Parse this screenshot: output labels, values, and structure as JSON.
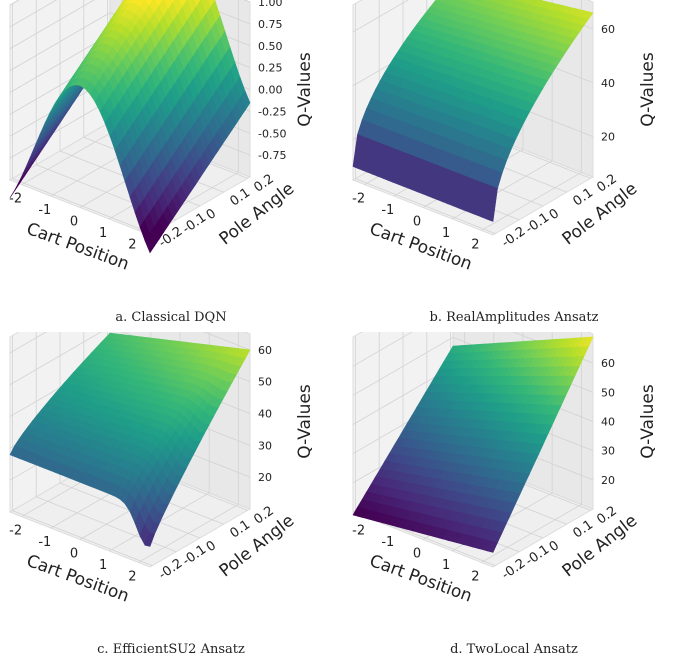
{
  "chart_data": [
    {
      "type": "surface3d",
      "caption": "a. Classical DQN",
      "xlabel": "Cart Position",
      "ylabel": "Pole Angle",
      "zlabel": "Q-Values",
      "xticks": [
        "-2",
        "-1",
        "0",
        "1",
        "2"
      ],
      "yticks": [
        "-0.2",
        "-0.1",
        "0",
        "0.1",
        "0.2"
      ],
      "zticks": [
        "1.00",
        "0.75",
        "0.50",
        "0.25",
        "0.00",
        "-0.25",
        "-0.50",
        "-0.75"
      ],
      "xlim": [
        -2.4,
        2.4
      ],
      "ylim": [
        -0.21,
        0.21
      ],
      "zlim": [
        -1,
        1
      ],
      "surface": "Q = cos(x) + 3*y, ridge along cart position ≈ 0",
      "colormap": "viridis"
    },
    {
      "type": "surface3d",
      "caption": "b. RealAmplitudes Ansatz",
      "xlabel": "Cart Position",
      "ylabel": "Pole Angle",
      "zlabel": "Q-Values",
      "xticks": [
        "-2",
        "-1",
        "0",
        "1",
        "2"
      ],
      "yticks": [
        "-0.2",
        "-0.1",
        "0",
        "0.1",
        "0.2"
      ],
      "zticks": [
        "60",
        "40",
        "20"
      ],
      "xlim": [
        -2.4,
        2.4
      ],
      "ylim": [
        -0.21,
        0.21
      ],
      "zlim": [
        5,
        70
      ],
      "surface": "Q rises from ≈10 at pole angle -0.2 to ≈58–68 at pole angle 0.2, slightly higher at positive cart position",
      "colormap": "viridis"
    },
    {
      "type": "surface3d",
      "caption": "c. EfficientSU2 Ansatz",
      "xlabel": "Cart Position",
      "ylabel": "Pole Angle",
      "zlabel": "Q-Values",
      "xticks": [
        "-2",
        "-1",
        "0",
        "1",
        "2"
      ],
      "yticks": [
        "-0.2",
        "-0.1",
        "0",
        "0.1",
        "0.2"
      ],
      "zticks": [
        "60",
        "50",
        "40",
        "30",
        "20"
      ],
      "xlim": [
        -2.4,
        2.4
      ],
      "ylim": [
        -0.21,
        0.21
      ],
      "zlim": [
        10,
        65
      ],
      "surface": "Q ≈ 30 at pole angle -0.2 rising to ≈52–62 at pole angle 0.2",
      "colormap": "viridis"
    },
    {
      "type": "surface3d",
      "caption": "d. TwoLocal Ansatz",
      "xlabel": "Cart Position",
      "ylabel": "Pole Angle",
      "zlabel": "Q-Values",
      "xticks": [
        "-2",
        "-1",
        "0",
        "1",
        "2"
      ],
      "yticks": [
        "-0.2",
        "-0.1",
        "0",
        "0.1",
        "0.2"
      ],
      "zticks": [
        "60",
        "50",
        "40",
        "30",
        "20"
      ],
      "xlim": [
        -2.4,
        2.4
      ],
      "ylim": [
        -0.21,
        0.21
      ],
      "zlim": [
        10,
        70
      ],
      "surface": "Q ≈ 12–20 at pole angle -0.2 rising to ≈55–67 at pole angle 0.2",
      "colormap": "viridis"
    }
  ]
}
